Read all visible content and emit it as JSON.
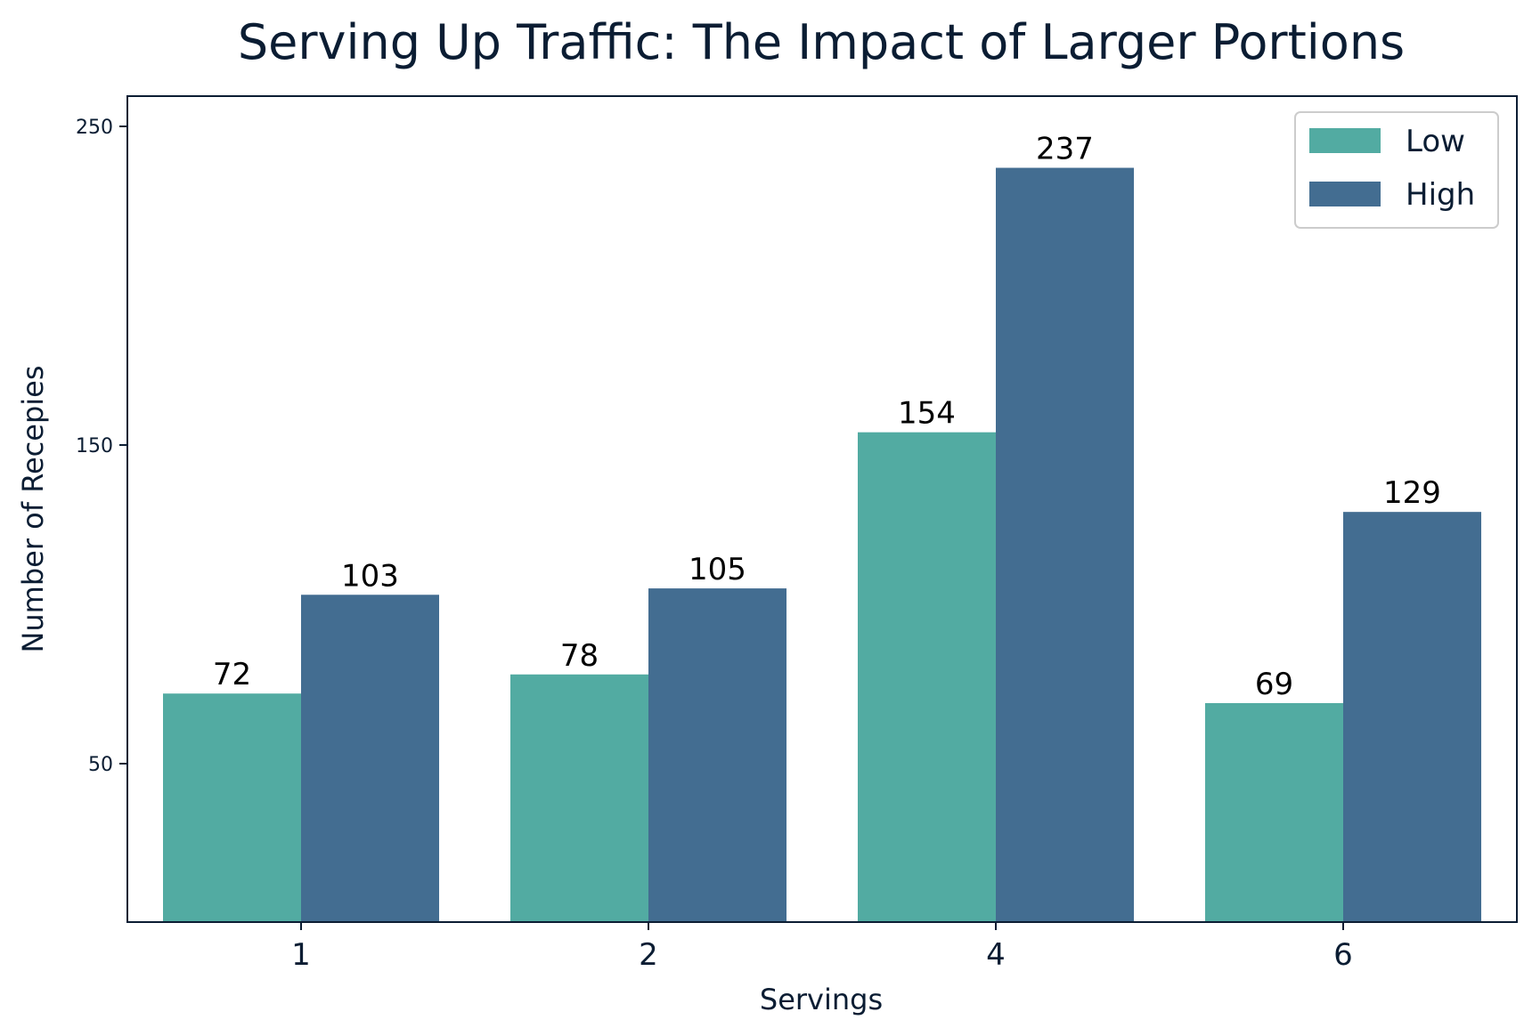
{
  "chart_data": {
    "type": "bar",
    "title": "Serving Up Traffic: The Impact of Larger Portions",
    "xlabel": "Servings",
    "ylabel": "Number of Recepies",
    "categories": [
      "1",
      "2",
      "4",
      "6"
    ],
    "series": [
      {
        "name": "Low",
        "color": "#52ab a2",
        "values": [
          72,
          78,
          154,
          69
        ]
      },
      {
        "name": "High",
        "color": "#436d91",
        "values": [
          103,
          105,
          237,
          129
        ]
      }
    ],
    "yticks": [
      50,
      150,
      250
    ],
    "ylim": [
      0,
      260
    ],
    "legend": "top-right",
    "grid": false,
    "colors": {
      "text": "#0b1d33",
      "axis": "#0b1d33"
    }
  }
}
